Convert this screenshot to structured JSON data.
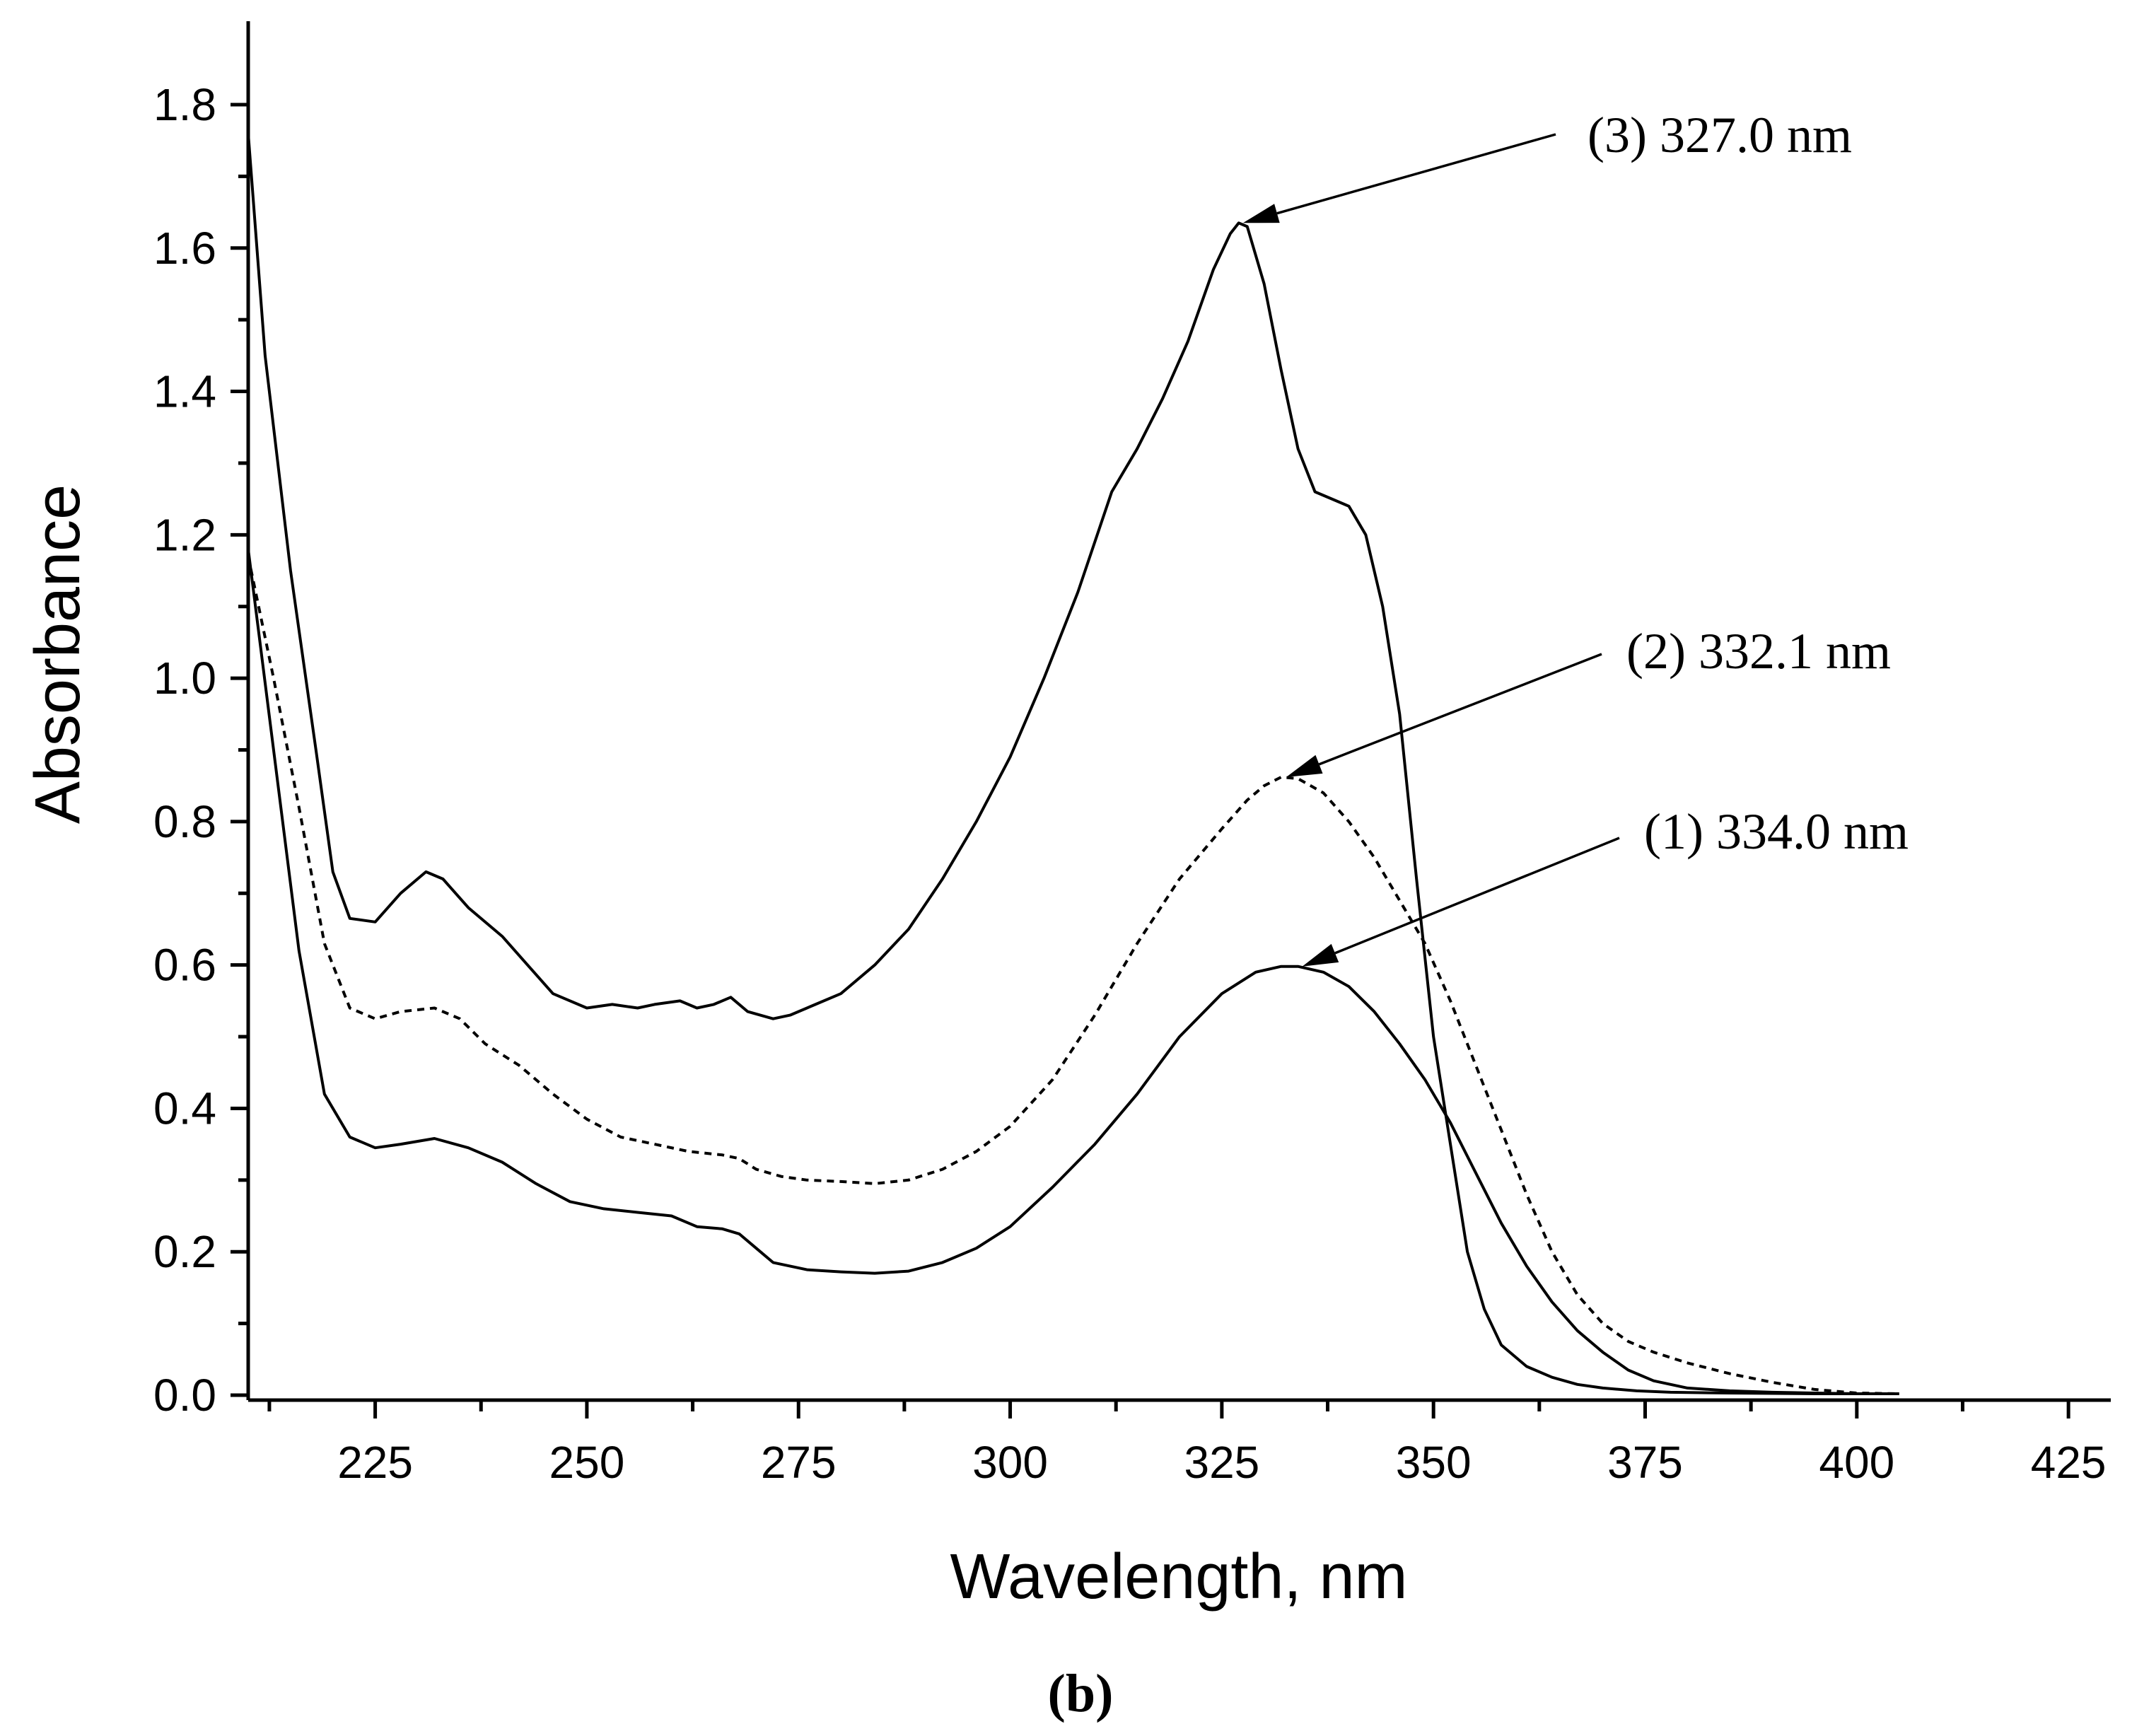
{
  "chart_data": {
    "type": "line",
    "title": "",
    "xlabel": "Wavelength, nm",
    "ylabel": "Absorbance",
    "xlim": [
      210,
      430
    ],
    "ylim": [
      0,
      1.9
    ],
    "x_ticks": [
      225,
      250,
      275,
      300,
      325,
      350,
      375,
      400,
      425
    ],
    "x_tick_labels": [
      "225",
      "250",
      "275",
      "300",
      "325",
      "350",
      "375",
      "400",
      "425"
    ],
    "y_ticks": [
      0.0,
      0.2,
      0.4,
      0.6,
      0.8,
      1.0,
      1.2,
      1.4,
      1.6,
      1.8
    ],
    "y_tick_labels": [
      "0.0",
      "0.2",
      "0.4",
      "0.6",
      "0.8",
      "1.0",
      "1.2",
      "1.4",
      "1.6",
      "1.8"
    ],
    "grid": false,
    "panel_label": "b",
    "series": [
      {
        "name": "(1)",
        "style": "solid",
        "x": [
          210,
          213,
          216,
          219,
          222,
          225,
          228,
          232,
          236,
          240,
          244,
          248,
          252,
          256,
          260,
          263,
          266,
          268,
          270,
          272,
          276,
          280,
          284,
          288,
          292,
          296,
          300,
          305,
          310,
          315,
          320,
          325,
          329,
          332,
          334,
          337,
          340,
          343,
          346,
          349,
          352,
          355,
          358,
          361,
          364,
          367,
          370,
          373,
          376,
          380,
          385,
          390,
          395,
          400,
          405
        ],
        "values": [
          1.18,
          0.9,
          0.62,
          0.42,
          0.36,
          0.345,
          0.35,
          0.358,
          0.345,
          0.325,
          0.295,
          0.27,
          0.26,
          0.255,
          0.25,
          0.235,
          0.232,
          0.225,
          0.205,
          0.185,
          0.175,
          0.172,
          0.17,
          0.173,
          0.185,
          0.205,
          0.235,
          0.29,
          0.35,
          0.42,
          0.5,
          0.56,
          0.59,
          0.598,
          0.598,
          0.59,
          0.57,
          0.535,
          0.49,
          0.44,
          0.38,
          0.31,
          0.24,
          0.18,
          0.13,
          0.09,
          0.06,
          0.035,
          0.02,
          0.01,
          0.006,
          0.004,
          0.003,
          0.002,
          0.002
        ]
      },
      {
        "name": "(2)",
        "style": "dashed",
        "x": [
          210,
          213,
          216,
          219,
          222,
          225,
          228,
          232,
          235,
          238,
          242,
          246,
          250,
          254,
          258,
          262,
          266,
          268,
          270,
          273,
          276,
          280,
          284,
          288,
          292,
          296,
          300,
          305,
          310,
          315,
          320,
          325,
          328,
          330,
          332,
          334,
          337,
          340,
          343,
          346,
          349,
          352,
          355,
          358,
          361,
          364,
          367,
          370,
          373,
          376,
          380,
          385,
          390,
          395,
          400,
          405
        ],
        "values": [
          1.17,
          1.0,
          0.82,
          0.63,
          0.54,
          0.525,
          0.535,
          0.54,
          0.525,
          0.49,
          0.46,
          0.42,
          0.385,
          0.36,
          0.35,
          0.34,
          0.335,
          0.33,
          0.315,
          0.305,
          0.3,
          0.298,
          0.295,
          0.3,
          0.315,
          0.34,
          0.375,
          0.44,
          0.53,
          0.63,
          0.72,
          0.79,
          0.83,
          0.85,
          0.862,
          0.86,
          0.84,
          0.8,
          0.75,
          0.69,
          0.63,
          0.55,
          0.46,
          0.37,
          0.28,
          0.2,
          0.14,
          0.1,
          0.075,
          0.06,
          0.045,
          0.03,
          0.018,
          0.008,
          0.003,
          0.002
        ]
      },
      {
        "name": "(3)",
        "style": "solid",
        "x": [
          210,
          212,
          215,
          218,
          220,
          222,
          225,
          228,
          231,
          233,
          236,
          240,
          243,
          246,
          250,
          253,
          256,
          258,
          261,
          263,
          265,
          267,
          269,
          272,
          274,
          277,
          280,
          284,
          288,
          292,
          296,
          300,
          304,
          308,
          312,
          315,
          318,
          321,
          324,
          326,
          327,
          328,
          330,
          332,
          334,
          336,
          338,
          340,
          342,
          344,
          346,
          348,
          350,
          352,
          354,
          356,
          358,
          361,
          364,
          367,
          370,
          374,
          378,
          385,
          395,
          405
        ],
        "values": [
          1.76,
          1.45,
          1.15,
          0.9,
          0.73,
          0.665,
          0.66,
          0.7,
          0.73,
          0.72,
          0.68,
          0.64,
          0.6,
          0.56,
          0.54,
          0.545,
          0.54,
          0.545,
          0.55,
          0.54,
          0.545,
          0.555,
          0.535,
          0.525,
          0.53,
          0.545,
          0.56,
          0.6,
          0.65,
          0.72,
          0.8,
          0.89,
          1.0,
          1.12,
          1.26,
          1.32,
          1.39,
          1.47,
          1.57,
          1.62,
          1.635,
          1.63,
          1.55,
          1.43,
          1.32,
          1.26,
          1.25,
          1.24,
          1.2,
          1.1,
          0.95,
          0.72,
          0.5,
          0.35,
          0.2,
          0.12,
          0.07,
          0.04,
          0.025,
          0.015,
          0.01,
          0.006,
          0.004,
          0.003,
          0.002,
          0.002
        ]
      }
    ],
    "annotations": [
      {
        "text": "(3) 327.0 nm",
        "target_x": 327.0,
        "target_y": 1.635
      },
      {
        "text": "(2) 332.1 nm",
        "target_x": 332.1,
        "target_y": 0.862
      },
      {
        "text": "(1) 334.0 nm",
        "target_x": 334.0,
        "target_y": 0.598
      }
    ]
  }
}
